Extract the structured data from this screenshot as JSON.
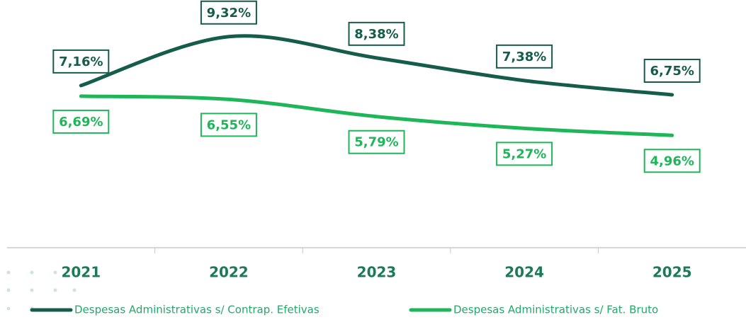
{
  "chart_data": {
    "type": "line",
    "categories": [
      "2021",
      "2022",
      "2023",
      "2024",
      "2025"
    ],
    "series": [
      {
        "name": "Despesas Administrativas s/ Contrap. Efetivas",
        "color": "#165c4b",
        "values": [
          7.16,
          9.32,
          8.38,
          7.38,
          6.75
        ],
        "value_labels": [
          "7,16%",
          "9,32%",
          "8,38%",
          "7,38%",
          "6,75%"
        ]
      },
      {
        "name": "Despesas Administrativas s/ Fat. Bruto",
        "color": "#1fb65a",
        "values": [
          6.69,
          6.55,
          5.79,
          5.27,
          4.96
        ],
        "value_labels": [
          "6,69%",
          "6,55%",
          "5,79%",
          "5,27%",
          "4,96%"
        ]
      }
    ],
    "ylim": [
      0,
      10
    ],
    "grid": false,
    "legend": "bottom"
  }
}
